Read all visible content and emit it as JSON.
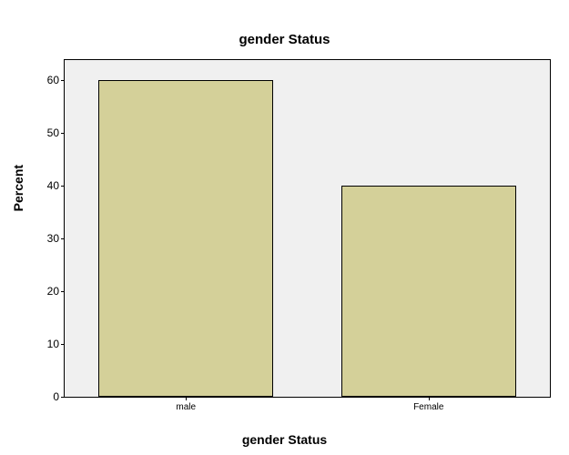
{
  "chart": {
    "type": "bar",
    "title": "gender Status",
    "title_fontsize": 15,
    "title_fontweight": "bold",
    "xlabel": "gender Status",
    "ylabel": "Percent",
    "label_fontsize": 14,
    "label_fontweight": "bold",
    "background_outer": "#ffffff",
    "background_plot": "#f0f0f0",
    "border_color": "#000000",
    "categories": [
      "male",
      "Female"
    ],
    "values": [
      60,
      40
    ],
    "bar_color": "#d4d099",
    "bar_border_color": "#000000",
    "bar_width_ratio": 0.72,
    "ylim": [
      0,
      60
    ],
    "ytick_step": 10,
    "yticks": [
      0,
      10,
      20,
      30,
      40,
      50,
      60
    ],
    "xtick_fontsize": 10,
    "ytick_fontsize": 12
  }
}
